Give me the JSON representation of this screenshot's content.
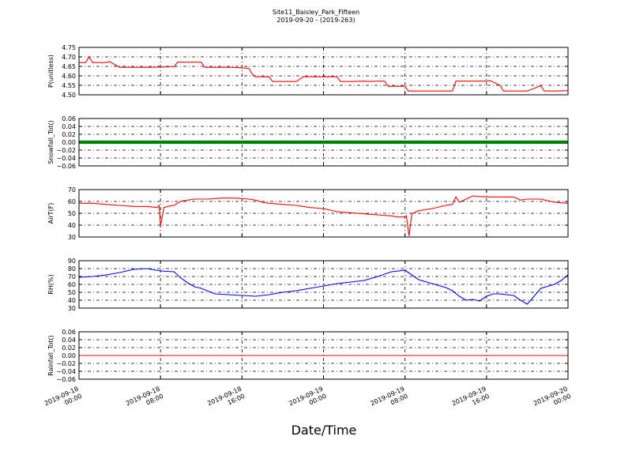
{
  "figure": {
    "title_line1": "Site11_Baisley_Park_Fifteen",
    "title_line2": "2019-09-20 - (2019-263)",
    "xlabel": "Date/Time"
  },
  "chart_data": [
    {
      "type": "line",
      "ylabel": "P(unitless)",
      "color": "#ff0000",
      "ylim": [
        4.5,
        4.75
      ],
      "yticks": [
        "4.50",
        "4.55",
        "4.60",
        "4.65",
        "4.70",
        "4.75"
      ],
      "grid": true,
      "x_hours": [
        0,
        1,
        1.5,
        2,
        4,
        4.5,
        6,
        8,
        10,
        10.5,
        14,
        14.5,
        18,
        18.5,
        22,
        22.5,
        25,
        25.5,
        26,
        28,
        28.5,
        32,
        33,
        34,
        38,
        38.5,
        40,
        42,
        42.5,
        44,
        45,
        45.5,
        48,
        48.5,
        50,
        50.5,
        52,
        55,
        55.5,
        58,
        60,
        60.5,
        62,
        62.5,
        65,
        66,
        68,
        68.5,
        70,
        70.5,
        72
      ],
      "values": [
        4.67,
        4.67,
        4.7,
        4.67,
        4.67,
        4.675,
        4.645,
        4.645,
        4.645,
        4.645,
        4.648,
        4.672,
        4.672,
        4.645,
        4.645,
        4.645,
        4.64,
        4.61,
        4.595,
        4.595,
        4.57,
        4.57,
        4.595,
        4.595,
        4.595,
        4.57,
        4.57,
        4.572,
        4.57,
        4.572,
        4.572,
        4.545,
        4.545,
        4.52,
        4.52,
        4.52,
        4.52,
        4.52,
        4.572,
        4.572,
        4.572,
        4.575,
        4.55,
        4.52,
        4.52,
        4.52,
        4.548,
        4.52,
        4.52,
        4.52,
        4.522
      ],
      "markers": false
    },
    {
      "type": "scatter",
      "ylabel": "Snowfall_Tot()",
      "color": "#008000",
      "ylim": [
        -0.06,
        0.06
      ],
      "yticks": [
        "−0.06",
        "−0.04",
        "−0.02",
        "0.00",
        "0.02",
        "0.04",
        "0.06"
      ],
      "grid": true,
      "x_hours": [
        0,
        72
      ],
      "values": [
        0,
        0
      ],
      "constant_value": 0,
      "markers": true
    },
    {
      "type": "line",
      "ylabel": "AirT(F)",
      "color": "#ff0000",
      "ylim": [
        30,
        75
      ],
      "yticks": [
        "30",
        "40",
        "50",
        "60",
        "70"
      ],
      "grid": true,
      "x_hours": [
        0,
        2,
        4,
        6,
        8,
        10,
        11.5,
        11.8,
        12,
        12.5,
        13,
        14,
        15,
        17,
        19,
        21,
        23,
        25,
        26,
        27,
        28,
        30,
        32,
        34,
        36,
        38,
        40,
        42,
        44,
        46,
        47,
        48,
        48.2,
        48.6,
        49,
        50,
        52,
        54,
        55,
        55.5,
        56,
        57,
        58,
        60,
        62,
        64,
        65,
        66,
        68,
        70,
        72
      ],
      "values": [
        62,
        62,
        61,
        60,
        59,
        59,
        58,
        60,
        40,
        58,
        59,
        60,
        64,
        66,
        66,
        67,
        67,
        66,
        65,
        63,
        62,
        61,
        60,
        58,
        57,
        54,
        53,
        52,
        51,
        50,
        49,
        49,
        50,
        31,
        52,
        55,
        57,
        60,
        61,
        68,
        63,
        66,
        69,
        68,
        68,
        68,
        65,
        66,
        66,
        63,
        62
      ],
      "markers": false
    },
    {
      "type": "line",
      "ylabel": "RH(%)",
      "color": "#0000ff",
      "ylim": [
        30,
        90
      ],
      "yticks": [
        "30",
        "40",
        "50",
        "60",
        "70",
        "80",
        "90"
      ],
      "grid": true,
      "x_hours": [
        0,
        2,
        4,
        6,
        8,
        10,
        12,
        14,
        15,
        16,
        17,
        18,
        20,
        22,
        24,
        26,
        28,
        30,
        32,
        34,
        36,
        38,
        40,
        42,
        44,
        46,
        48,
        49,
        50,
        52,
        54,
        55,
        56,
        57,
        58,
        59,
        60,
        61,
        62,
        63,
        64,
        65,
        66,
        68,
        70,
        71,
        72
      ],
      "values": [
        69,
        70,
        72,
        75,
        79,
        80,
        77,
        76,
        68,
        62,
        57,
        55,
        48,
        47,
        46,
        45,
        47,
        50,
        52,
        55,
        58,
        61,
        63,
        65,
        70,
        76,
        78,
        72,
        66,
        61,
        56,
        52,
        45,
        40,
        41,
        39,
        45,
        48,
        48,
        47,
        46,
        40,
        35,
        55,
        60,
        65,
        72
      ],
      "markers": false
    },
    {
      "type": "line",
      "ylabel": "Rainfall_Tot()",
      "color": "#ff0000",
      "ylim": [
        -0.06,
        0.06
      ],
      "yticks": [
        "−0.06",
        "−0.04",
        "−0.02",
        "0.00",
        "0.02",
        "0.04",
        "0.06"
      ],
      "grid": true,
      "x_hours": [
        0,
        72
      ],
      "values": [
        0,
        0
      ],
      "markers": false
    }
  ],
  "shared_x": {
    "range_hours": [
      0,
      72
    ],
    "tick_hours": [
      0,
      12,
      24,
      36,
      48,
      60,
      72
    ],
    "tick_labels": [
      [
        "2019-09-18",
        "00:00"
      ],
      [
        "2019-09-18",
        "08:00"
      ],
      [
        "2019-09-18",
        "16:00"
      ],
      [
        "2019-09-19",
        "00:00"
      ],
      [
        "2019-09-19",
        "08:00"
      ],
      [
        "2019-09-19",
        "16:00"
      ],
      [
        "2019-09-20",
        "00:00"
      ]
    ]
  }
}
